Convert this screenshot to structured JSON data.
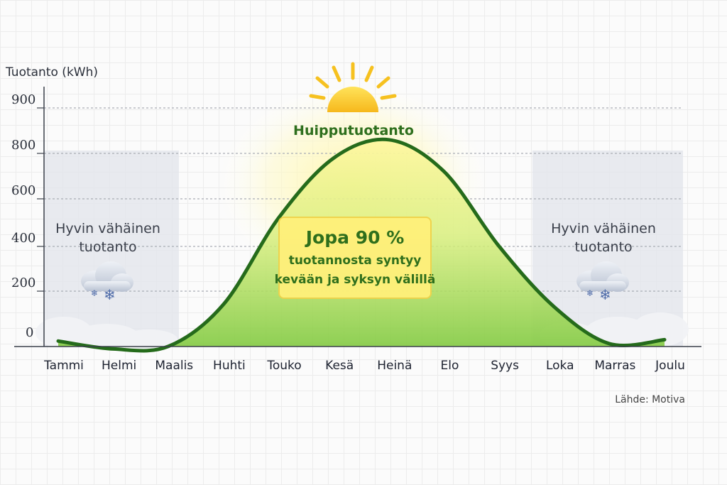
{
  "chart_data": {
    "type": "area",
    "ylabel": "Tuotanto (kWh)",
    "yticks": [
      0,
      200,
      400,
      600,
      800,
      900
    ],
    "ylim": [
      0,
      900
    ],
    "categories": [
      "Tammi",
      "Helmi",
      "Maalis",
      "Huhti",
      "Touko",
      "Kesä",
      "Heinä",
      "Elo",
      "Syys",
      "Loka",
      "Marras",
      "Joulu"
    ],
    "series": [
      {
        "values": [
          10,
          -20,
          -10,
          150,
          520,
          780,
          830,
          720,
          400,
          140,
          0,
          15
        ]
      }
    ],
    "grid": "dashed horizontal",
    "line_color": "#256b1b",
    "fill_color": "#8fd14a",
    "winter_band_color": "#e6e8ee",
    "annotations": {
      "peak": "Huipputuotanto",
      "winter_left": [
        "Hyvin vähäinen",
        "tuotanto"
      ],
      "winter_right": [
        "Hyvin vähäinen",
        "tuotanto"
      ],
      "box_title": "Jopa 90 %",
      "box_lines": [
        "tuotannosta syntyy",
        "kevään ja syksyn välillä"
      ]
    },
    "icons": [
      "sun-icon",
      "snow-cloud-icon"
    ],
    "source": "Lähde: Motiva"
  }
}
